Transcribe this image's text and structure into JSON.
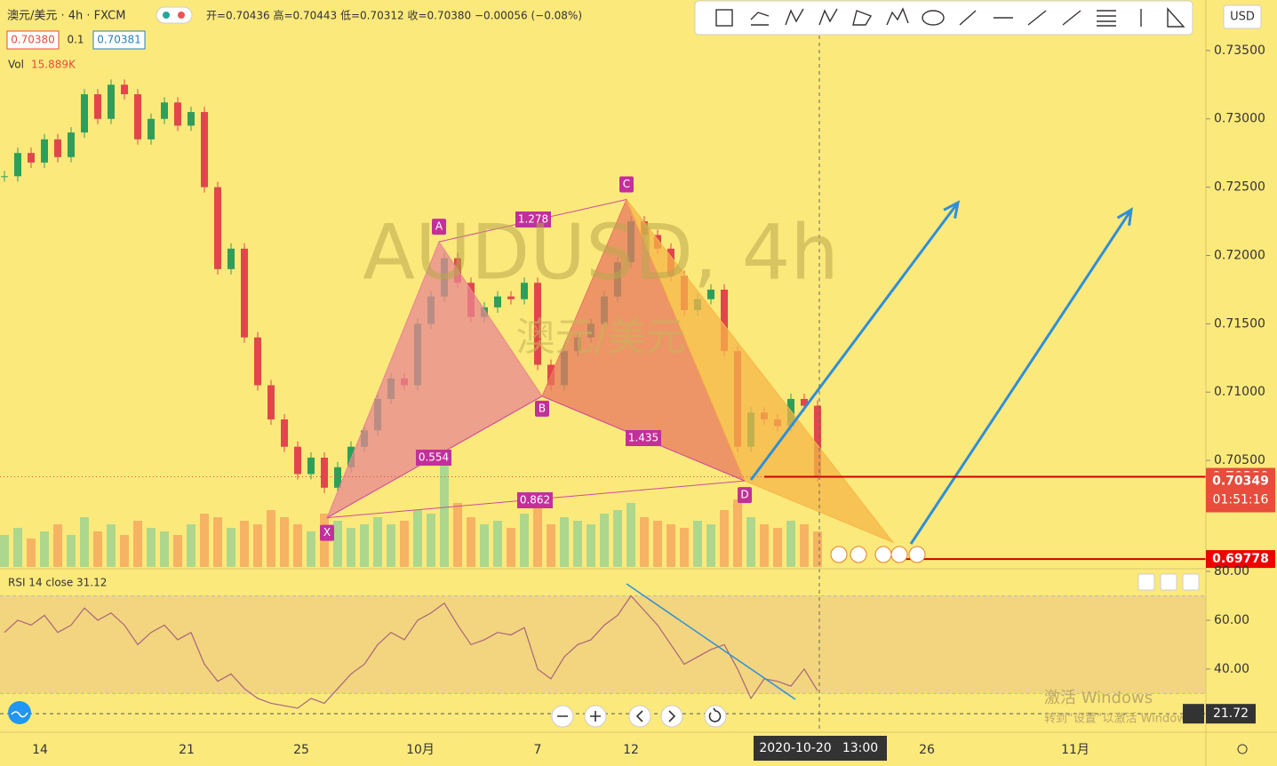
{
  "header": {
    "symbol": "澳元/美元 · 4h · FXCM",
    "ohlc": "开=0.70436 高=0.70443 低=0.70312 收=0.70380 −0.00056 (−0.08%)",
    "sell": "0.70380",
    "spread": "0.1",
    "buy": "0.70381",
    "vol_label": "Vol",
    "vol_value": "15.889K"
  },
  "watermark": {
    "ticker": "AUDUSD, 4h",
    "name": "澳元/美元"
  },
  "currency": "USD",
  "chart_data": {
    "type": "candlestick",
    "closes": [
      0.7258,
      0.7275,
      0.7268,
      0.7285,
      0.7272,
      0.729,
      0.7318,
      0.73,
      0.7325,
      0.7318,
      0.7285,
      0.73,
      0.7312,
      0.7295,
      0.7305,
      0.725,
      0.719,
      0.7205,
      0.714,
      0.7105,
      0.708,
      0.706,
      0.704,
      0.7052,
      0.703,
      0.7045,
      0.706,
      0.7072,
      0.7095,
      0.711,
      0.7105,
      0.715,
      0.717,
      0.7198,
      0.718,
      0.7155,
      0.7162,
      0.717,
      0.7168,
      0.718,
      0.712,
      0.7105,
      0.713,
      0.714,
      0.715,
      0.717,
      0.7195,
      0.7225,
      0.7215,
      0.7205,
      0.7185,
      0.716,
      0.7168,
      0.7175,
      0.713,
      0.706,
      0.7085,
      0.708,
      0.7075,
      0.7095,
      0.709,
      0.7038
    ],
    "volumes": [
      9,
      11,
      8,
      10,
      12,
      9,
      14,
      10,
      12,
      9,
      13,
      11,
      10,
      9,
      12,
      15,
      14,
      11,
      13,
      12,
      16,
      14,
      12,
      10,
      15,
      13,
      11,
      12,
      14,
      12,
      13,
      16,
      15,
      30,
      18,
      14,
      12,
      13,
      11,
      15,
      17,
      12,
      14,
      13,
      12,
      15,
      16,
      18,
      14,
      13,
      12,
      11,
      13,
      12,
      16,
      19,
      14,
      12,
      11,
      13,
      12,
      10
    ],
    "ylim": [
      0.6972,
      0.7387
    ],
    "yticks": [
      {
        "value": 0.735,
        "label": "0.73500"
      },
      {
        "value": 0.73,
        "label": "0.73000"
      },
      {
        "value": 0.725,
        "label": "0.72500"
      },
      {
        "value": 0.72,
        "label": "0.72000"
      },
      {
        "value": 0.715,
        "label": "0.71500"
      },
      {
        "value": 0.71,
        "label": "0.71000"
      },
      {
        "value": 0.705,
        "label": "0.70500"
      }
    ],
    "x_labels": [
      "14",
      "21",
      "25",
      "10月",
      "7",
      "12",
      "26",
      "11月"
    ]
  },
  "pattern": {
    "points": [
      {
        "label": "X",
        "price": 0.7008
      },
      {
        "label": "A",
        "price": 0.721
      },
      {
        "label": "B",
        "price": 0.7097
      },
      {
        "label": "C",
        "price": 0.7241
      },
      {
        "label": "D",
        "price": 0.7035
      }
    ],
    "target_price": 0.699,
    "ratios": [
      "0.554",
      "1.278",
      "1.435",
      "0.862"
    ]
  },
  "price_labels": [
    {
      "value": 0.7038,
      "label": "0.70380"
    },
    {
      "value": 0.70349,
      "label": "0.70349"
    },
    {
      "value": 0.69778,
      "label": "0.69778"
    }
  ],
  "countdown": "01:51:16",
  "rsi": {
    "title": "RSI 14 close",
    "current": 31.12,
    "level": 21.72,
    "ylim": [
      15.6,
      80
    ],
    "yticks": [
      {
        "value": 80,
        "label": "80.00"
      },
      {
        "value": 60,
        "label": "60.00"
      },
      {
        "value": 40,
        "label": "40.00"
      }
    ],
    "values": [
      55,
      60,
      58,
      62,
      55,
      58,
      65,
      60,
      63,
      58,
      50,
      55,
      58,
      52,
      55,
      42,
      35,
      38,
      32,
      28,
      26,
      25,
      24,
      28,
      26,
      32,
      38,
      42,
      50,
      55,
      52,
      60,
      63,
      67,
      58,
      50,
      52,
      55,
      54,
      57,
      40,
      36,
      45,
      50,
      52,
      58,
      62,
      70,
      64,
      58,
      50,
      42,
      45,
      48,
      50,
      40,
      28,
      36,
      35,
      33,
      40,
      31.12
    ]
  },
  "crosshair": {
    "date": "2020-10-20",
    "time": "13:00"
  },
  "os_watermark": {
    "title": "激活 Windows",
    "hint": "转到“设置”以激活 Windows。"
  }
}
